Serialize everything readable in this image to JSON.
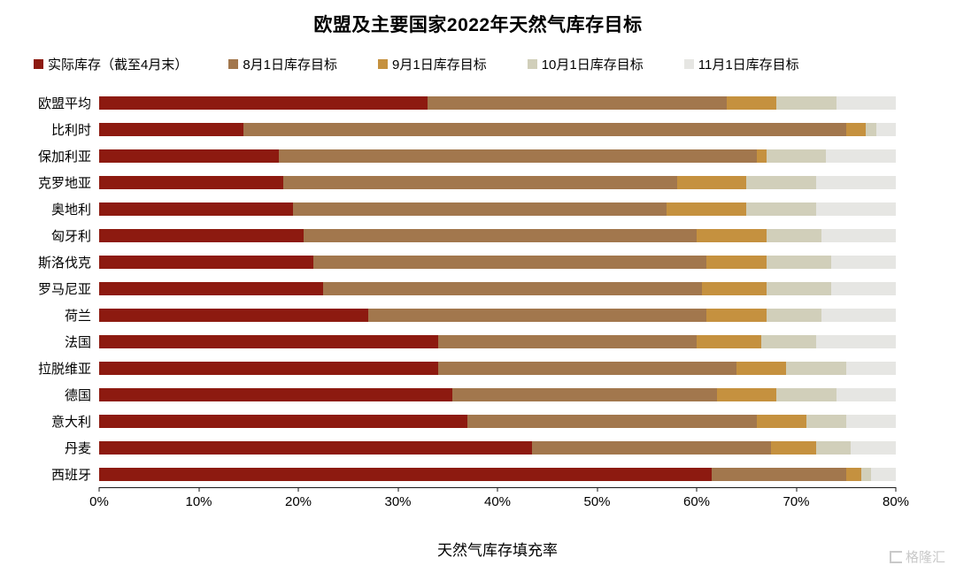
{
  "chart_data": {
    "type": "bar",
    "orientation": "horizontal",
    "stacked": true,
    "cumulative_note": "series values are cumulative fill-rate endpoints (%); each segment spans from previous series value to its own",
    "title": "欧盟及主要国家2022年天然气库存目标",
    "xlabel": "天然气库存填充率",
    "xlim": [
      0,
      80
    ],
    "x_ticks": [
      "0%",
      "10%",
      "20%",
      "30%",
      "40%",
      "50%",
      "60%",
      "70%",
      "80%"
    ],
    "grid": false,
    "legend_position": "top-left",
    "categories": [
      "欧盟平均",
      "比利时",
      "保加利亚",
      "克罗地亚",
      "奥地利",
      "匈牙利",
      "斯洛伐克",
      "罗马尼亚",
      "荷兰",
      "法国",
      "拉脱维亚",
      "德国",
      "意大利",
      "丹麦",
      "西班牙"
    ],
    "series": [
      {
        "name": "实际库存（截至4月末）",
        "color": "#8d1a10",
        "values": [
          33,
          14.5,
          18,
          18.5,
          19.5,
          20.5,
          21.5,
          22.5,
          27,
          34,
          34,
          35.5,
          37,
          43.5,
          61.5
        ]
      },
      {
        "name": "8月1日库存目标",
        "color": "#a2774d",
        "values": [
          63,
          75,
          66,
          58,
          57,
          60,
          61,
          60.5,
          61,
          60,
          64,
          62,
          66,
          67.5,
          75
        ]
      },
      {
        "name": "9月1日库存目标",
        "color": "#c5913f",
        "values": [
          68,
          77,
          67,
          65,
          65,
          67,
          67,
          67,
          67,
          66.5,
          69,
          68,
          71,
          72,
          76.5
        ]
      },
      {
        "name": "10月1日库存目标",
        "color": "#d1cfba",
        "values": [
          74,
          78,
          73,
          72,
          72,
          72.5,
          73.5,
          73.5,
          72.5,
          72,
          75,
          74,
          75,
          75.5,
          77.5
        ]
      },
      {
        "name": "11月1日库存目标",
        "color": "#e6e6e3",
        "values": [
          80,
          80,
          80,
          80,
          80,
          80,
          80,
          80,
          80,
          80,
          80,
          80,
          80,
          80,
          80
        ]
      }
    ]
  },
  "watermark": {
    "text": "格隆汇"
  }
}
